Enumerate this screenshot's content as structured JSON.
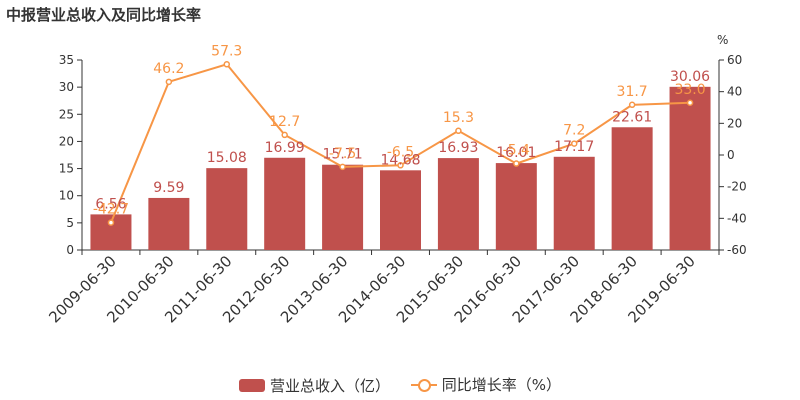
{
  "chart_data": {
    "type": "bar+line",
    "title": "中报营业总收入及同比增长率",
    "categories": [
      "2009-06-30",
      "2010-06-30",
      "2011-06-30",
      "2012-06-30",
      "2013-06-30",
      "2014-06-30",
      "2015-06-30",
      "2016-06-30",
      "2017-06-30",
      "2018-06-30",
      "2019-06-30"
    ],
    "series": [
      {
        "name": "营业总收入（亿）",
        "type": "bar",
        "axis": "left",
        "color": "#c0504d",
        "values": [
          6.56,
          9.59,
          15.08,
          16.99,
          15.71,
          14.68,
          16.93,
          16.01,
          17.17,
          22.61,
          30.06
        ],
        "labels": [
          "6.56",
          "9.59",
          "15.08",
          "16.99",
          "15.71",
          "14.68",
          "16.93",
          "16.01",
          "17.17",
          "22.61",
          "30.06"
        ]
      },
      {
        "name": "同比增长率（%）",
        "type": "line",
        "axis": "right",
        "color": "#f79646",
        "values": [
          -42.7,
          46.2,
          57.3,
          12.7,
          -7.5,
          -6.5,
          15.3,
          -5.4,
          7.2,
          31.7,
          33.0
        ],
        "labels": [
          "-42.7",
          "46.2",
          "57.3",
          "12.7",
          "-7.5",
          "-6.5",
          "15.3",
          "-5.4",
          "7.2",
          "31.7",
          "33.0"
        ]
      }
    ],
    "y_left": {
      "min": 0,
      "max": 35,
      "ticks": [
        "0",
        "5",
        "10",
        "15",
        "20",
        "25",
        "30",
        "35"
      ]
    },
    "y_right": {
      "min": -60,
      "max": 60,
      "unit": "%",
      "ticks": [
        "-60",
        "-40",
        "-20",
        "0",
        "20",
        "40",
        "60"
      ]
    },
    "grid": false,
    "legend_position": "bottom"
  }
}
